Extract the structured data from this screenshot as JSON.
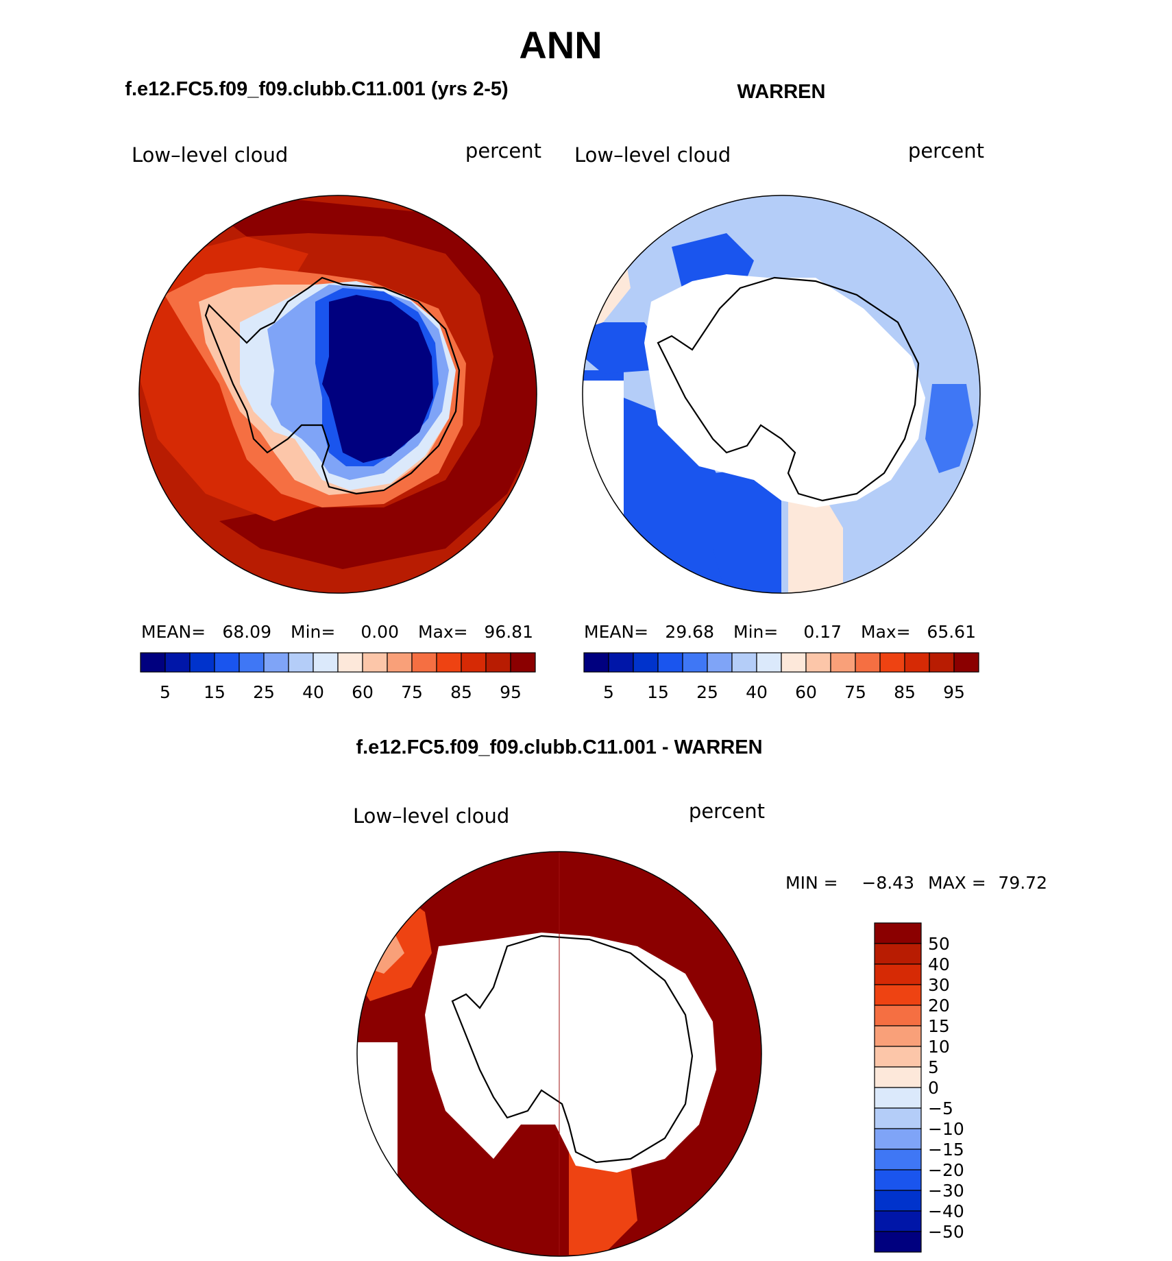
{
  "figure": {
    "title": "ANN"
  },
  "colors": {
    "abs_scale": [
      "#00007f",
      "#0016a8",
      "#0033cc",
      "#1a55ee",
      "#3f77f5",
      "#7fa4f7",
      "#b4cdf8",
      "#dbe9fb",
      "#fde8da",
      "#fcc6a9",
      "#f9a079",
      "#f56f42",
      "#ee4312",
      "#d62a05",
      "#b81c02",
      "#8b0000"
    ],
    "diff_scale": [
      "#00007f",
      "#0016a8",
      "#0033cc",
      "#1a55ee",
      "#3f77f5",
      "#7fa4f7",
      "#b4cdf8",
      "#dbe9fb",
      "#fde8da",
      "#fcc6a9",
      "#f9a079",
      "#f56f42",
      "#ee4312",
      "#d62a05",
      "#b81c02",
      "#8b0000"
    ],
    "coast": "#000000"
  },
  "chart_data": [
    {
      "type": "heatmap",
      "title": "f.e12.FC5.f09_f09.clubb.C11.001 (yrs 2-5)",
      "left_label": "Low–level cloud",
      "right_label": "percent",
      "stats": {
        "mean_label": "MEAN=",
        "mean": "68.09",
        "min_label": "Min=",
        "min": "0.00",
        "max_label": "Max=",
        "max": "96.81"
      },
      "colorbar": {
        "orientation": "horizontal",
        "levels": [
          5,
          10,
          15,
          20,
          25,
          30,
          40,
          50,
          60,
          70,
          75,
          80,
          85,
          90,
          95
        ],
        "tick_labels": [
          "5",
          "15",
          "25",
          "40",
          "60",
          "75",
          "85",
          "95"
        ]
      }
    },
    {
      "type": "heatmap",
      "title": "WARREN",
      "left_label": "Low–level cloud",
      "right_label": "percent",
      "stats": {
        "mean_label": "MEAN=",
        "mean": "29.68",
        "min_label": "Min=",
        "min": "0.17",
        "max_label": "Max=",
        "max": "65.61"
      },
      "colorbar": {
        "orientation": "horizontal",
        "levels": [
          5,
          10,
          15,
          20,
          25,
          30,
          40,
          50,
          60,
          70,
          75,
          80,
          85,
          90,
          95
        ],
        "tick_labels": [
          "5",
          "15",
          "25",
          "40",
          "60",
          "75",
          "85",
          "95"
        ]
      }
    },
    {
      "type": "heatmap",
      "title": "f.e12.FC5.f09_f09.clubb.C11.001 - WARREN",
      "left_label": "Low–level cloud",
      "right_label": "percent",
      "stats": {
        "min_label": "MIN =",
        "min": "−8.43",
        "max_label": "MAX =",
        "max": "79.72"
      },
      "colorbar": {
        "orientation": "vertical",
        "levels": [
          -50,
          -40,
          -30,
          -20,
          -15,
          -10,
          -5,
          0,
          5,
          10,
          15,
          20,
          30,
          40,
          50
        ],
        "tick_labels": [
          "50",
          "40",
          "30",
          "20",
          "15",
          "10",
          "5",
          "0",
          "−5",
          "−10",
          "−15",
          "−20",
          "−30",
          "−40",
          "−50"
        ]
      }
    }
  ]
}
